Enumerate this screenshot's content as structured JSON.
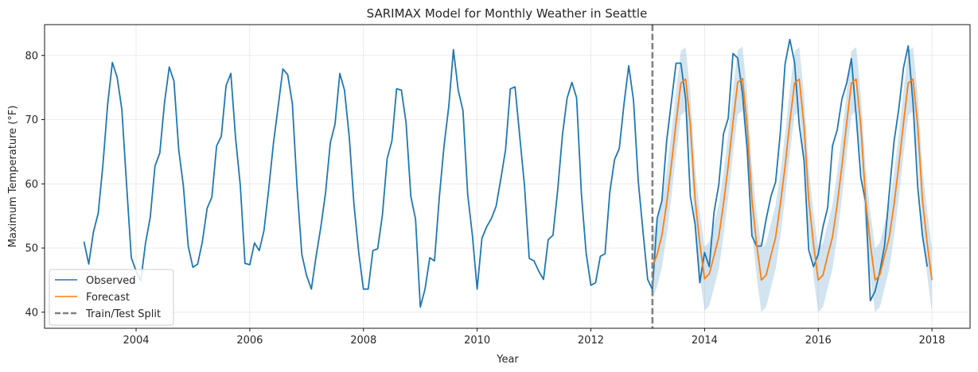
{
  "chart_data": {
    "type": "line",
    "title": "SARIMAX Model for Monthly Weather in Seattle",
    "xlabel": "Year",
    "ylabel": "Maximum Temperature (°F)",
    "xlim": [
      2002.39,
      2018.67
    ],
    "ylim": [
      37.5,
      84.8
    ],
    "x_ticks": [
      2004,
      2006,
      2008,
      2010,
      2012,
      2014,
      2016,
      2018
    ],
    "y_ticks": [
      40,
      50,
      60,
      70,
      80
    ],
    "grid": true,
    "legend": {
      "placement": "lower-left",
      "entries": [
        {
          "name": "Observed",
          "color": "#1f77b4",
          "style": "solid"
        },
        {
          "name": "Forecast",
          "color": "#ff7f0e",
          "style": "solid"
        },
        {
          "name": "Train/Test Split",
          "color": "#808080",
          "style": "dashed"
        }
      ]
    },
    "split_x": 2013.083,
    "start_year": 2003.083,
    "colors": {
      "observed": "#1f77b4",
      "forecast": "#ff7f0e",
      "confidence": "#1f77b4",
      "split": "#808080"
    },
    "observed": [
      51.0,
      47.5,
      52.5,
      55.4,
      62.9,
      72.4,
      78.9,
      76.6,
      71.6,
      59.8,
      48.5,
      46.4,
      44.9,
      50.8,
      54.8,
      62.8,
      64.8,
      72.6,
      78.2,
      76.0,
      65.3,
      59.6,
      50.3,
      47.0,
      47.5,
      51.0,
      56.2,
      57.9,
      65.9,
      67.4,
      75.3,
      77.2,
      67.2,
      59.7,
      47.6,
      47.4,
      50.8,
      49.6,
      52.7,
      59.2,
      66.3,
      72.1,
      77.9,
      77.0,
      72.5,
      59.3,
      49.0,
      45.7,
      43.6,
      48.7,
      53.3,
      58.6,
      66.4,
      69.3,
      77.2,
      74.6,
      67.3,
      56.8,
      49.3,
      43.6,
      43.6,
      49.6,
      49.9,
      55.2,
      63.9,
      66.7,
      74.8,
      74.6,
      69.5,
      58.0,
      54.5,
      40.8,
      43.6,
      48.5,
      48.0,
      57.8,
      65.8,
      72.0,
      80.9,
      74.6,
      71.4,
      58.4,
      51.9,
      43.6,
      51.5,
      53.3,
      54.6,
      56.5,
      60.8,
      65.3,
      74.8,
      75.1,
      67.3,
      59.7,
      48.4,
      48.0,
      46.4,
      45.1,
      51.3,
      52.0,
      59.0,
      67.6,
      73.4,
      75.8,
      73.4,
      58.5,
      49.3,
      44.2,
      44.6,
      48.7,
      49.1,
      58.7,
      63.8,
      65.5,
      72.5,
      78.4,
      73.0,
      60.5,
      52.6,
      45.1,
      43.5,
      54.6,
      57.4,
      66.6,
      72.8,
      78.8,
      78.8,
      73.2,
      58.1,
      53.7,
      44.6,
      49.3,
      47.1,
      55.6,
      59.8,
      67.8,
      70.2,
      80.3,
      79.6,
      74.1,
      65.4,
      51.9,
      50.3,
      50.3,
      54.5,
      58.0,
      60.3,
      68.0,
      78.7,
      82.5,
      78.9,
      69.1,
      63.6,
      49.7,
      47.1,
      49.0,
      53.3,
      56.3,
      65.9,
      68.4,
      73.2,
      75.7,
      79.5,
      70.6,
      60.9,
      57.2,
      41.8,
      43.3,
      46.3,
      50.4,
      58.6,
      66.6,
      71.6,
      78.1,
      81.5,
      72.6,
      59.5,
      51.9,
      47.1
    ],
    "forecast": [
      47.1,
      49.0,
      52.0,
      56.9,
      63.0,
      69.6,
      75.7,
      76.3,
      69.2,
      57.6,
      50.7,
      45.2,
      46.0,
      48.8,
      51.7,
      56.9,
      62.8,
      69.6,
      75.8,
      76.4,
      69.1,
      57.6,
      50.6,
      45.0,
      45.8,
      48.8,
      51.7,
      56.8,
      62.8,
      69.6,
      75.7,
      76.3,
      69.0,
      57.5,
      50.6,
      45.0,
      45.8,
      48.8,
      51.7,
      56.8,
      62.8,
      69.5,
      75.7,
      76.3,
      69.0,
      57.5,
      50.6,
      45.0,
      45.8,
      48.8,
      51.7,
      56.8,
      62.8,
      69.5,
      75.7,
      76.3,
      69.0,
      57.5,
      50.7,
      45.0
    ],
    "ci_halfwidth": 5.0
  }
}
